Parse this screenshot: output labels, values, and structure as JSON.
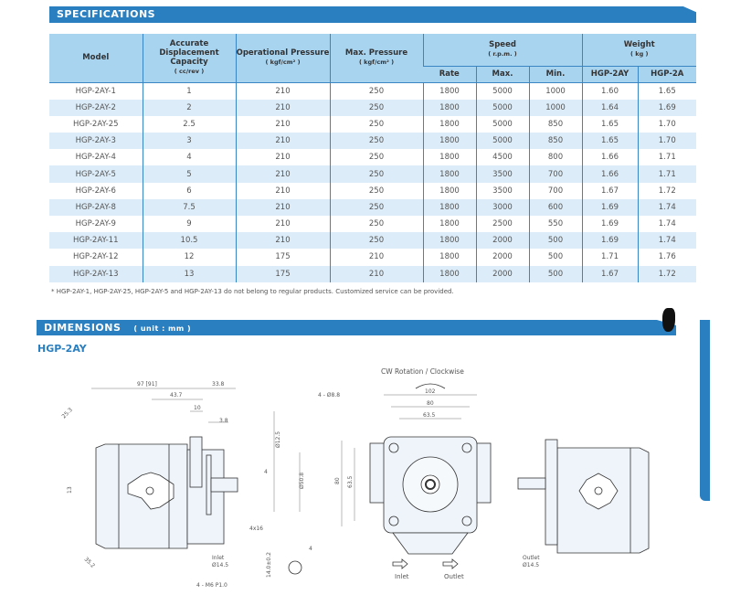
{
  "specifications": {
    "title": "SPECIFICATIONS",
    "headers": {
      "model": "Model",
      "displacement": "Accurate Displacement Capacity",
      "displacement_unit": "( cc/rev )",
      "operational": "Operational Pressure",
      "operational_unit": "( kgf/cm² )",
      "max_pressure": "Max. Pressure",
      "max_pressure_unit": "( kgf/cm² )",
      "speed": "Speed",
      "speed_unit": "( r.p.m. )",
      "rate": "Rate",
      "max": "Max.",
      "min": "Min.",
      "weight": "Weight",
      "weight_unit": "( kg )",
      "w_2ay": "HGP-2AY",
      "w_2a": "HGP-2A"
    },
    "rows": [
      [
        "HGP-2AY-1",
        "1",
        "210",
        "250",
        "1800",
        "5000",
        "1000",
        "1.60",
        "1.65"
      ],
      [
        "HGP-2AY-2",
        "2",
        "210",
        "250",
        "1800",
        "5000",
        "1000",
        "1.64",
        "1.69"
      ],
      [
        "HGP-2AY-25",
        "2.5",
        "210",
        "250",
        "1800",
        "5000",
        "850",
        "1.65",
        "1.70"
      ],
      [
        "HGP-2AY-3",
        "3",
        "210",
        "250",
        "1800",
        "5000",
        "850",
        "1.65",
        "1.70"
      ],
      [
        "HGP-2AY-4",
        "4",
        "210",
        "250",
        "1800",
        "4500",
        "800",
        "1.66",
        "1.71"
      ],
      [
        "HGP-2AY-5",
        "5",
        "210",
        "250",
        "1800",
        "3500",
        "700",
        "1.66",
        "1.71"
      ],
      [
        "HGP-2AY-6",
        "6",
        "210",
        "250",
        "1800",
        "3500",
        "700",
        "1.67",
        "1.72"
      ],
      [
        "HGP-2AY-8",
        "7.5",
        "210",
        "250",
        "1800",
        "3000",
        "600",
        "1.69",
        "1.74"
      ],
      [
        "HGP-2AY-9",
        "9",
        "210",
        "250",
        "1800",
        "2500",
        "550",
        "1.69",
        "1.74"
      ],
      [
        "HGP-2AY-11",
        "10.5",
        "210",
        "250",
        "1800",
        "2000",
        "500",
        "1.69",
        "1.74"
      ],
      [
        "HGP-2AY-12",
        "12",
        "175",
        "210",
        "1800",
        "2000",
        "500",
        "1.71",
        "1.76"
      ],
      [
        "HGP-2AY-13",
        "13",
        "175",
        "210",
        "1800",
        "2000",
        "500",
        "1.67",
        "1.72"
      ]
    ],
    "footnote": "* HGP-2AY-1, HGP-2AY-25, HGP-2AY-5 and HGP-2AY-13 do not belong to regular products. Customized service can be provided."
  },
  "dimensions": {
    "title": "DIMENSIONS",
    "unit": "( unit : mm )",
    "model": "HGP-2AY",
    "side_view": {
      "d_97": "97 [91]",
      "d_338": "33.8",
      "d_437": "43.7",
      "d_10": "10",
      "d_38": "3.8",
      "d_253": "25.3",
      "d_13": "13",
      "d_352": "35.2",
      "d_125": "Ø12.5",
      "d_508": "Ø50.8",
      "d_4": "4",
      "key": "4x16",
      "inlet": "Inlet",
      "inlet_d": "Ø14.5",
      "bolt": "4 - M6 P1.0",
      "key_h": "14.0±0.2",
      "key_w": "4"
    },
    "front_view": {
      "rotation": "CW Rotation / Clockwise",
      "holes": "4 - Ø8.8",
      "d_102": "102",
      "d_80": "80",
      "d_635": "63.5",
      "v_80": "80",
      "v_635": "63.5",
      "inlet": "Inlet",
      "outlet": "Outlet"
    },
    "rear_view": {
      "outlet": "Outlet",
      "outlet_d": "Ø14.5"
    }
  },
  "colors": {
    "accent": "#2a7fc0",
    "header_bg": "#a9d4f0",
    "alt_row": "#dcecf8"
  }
}
